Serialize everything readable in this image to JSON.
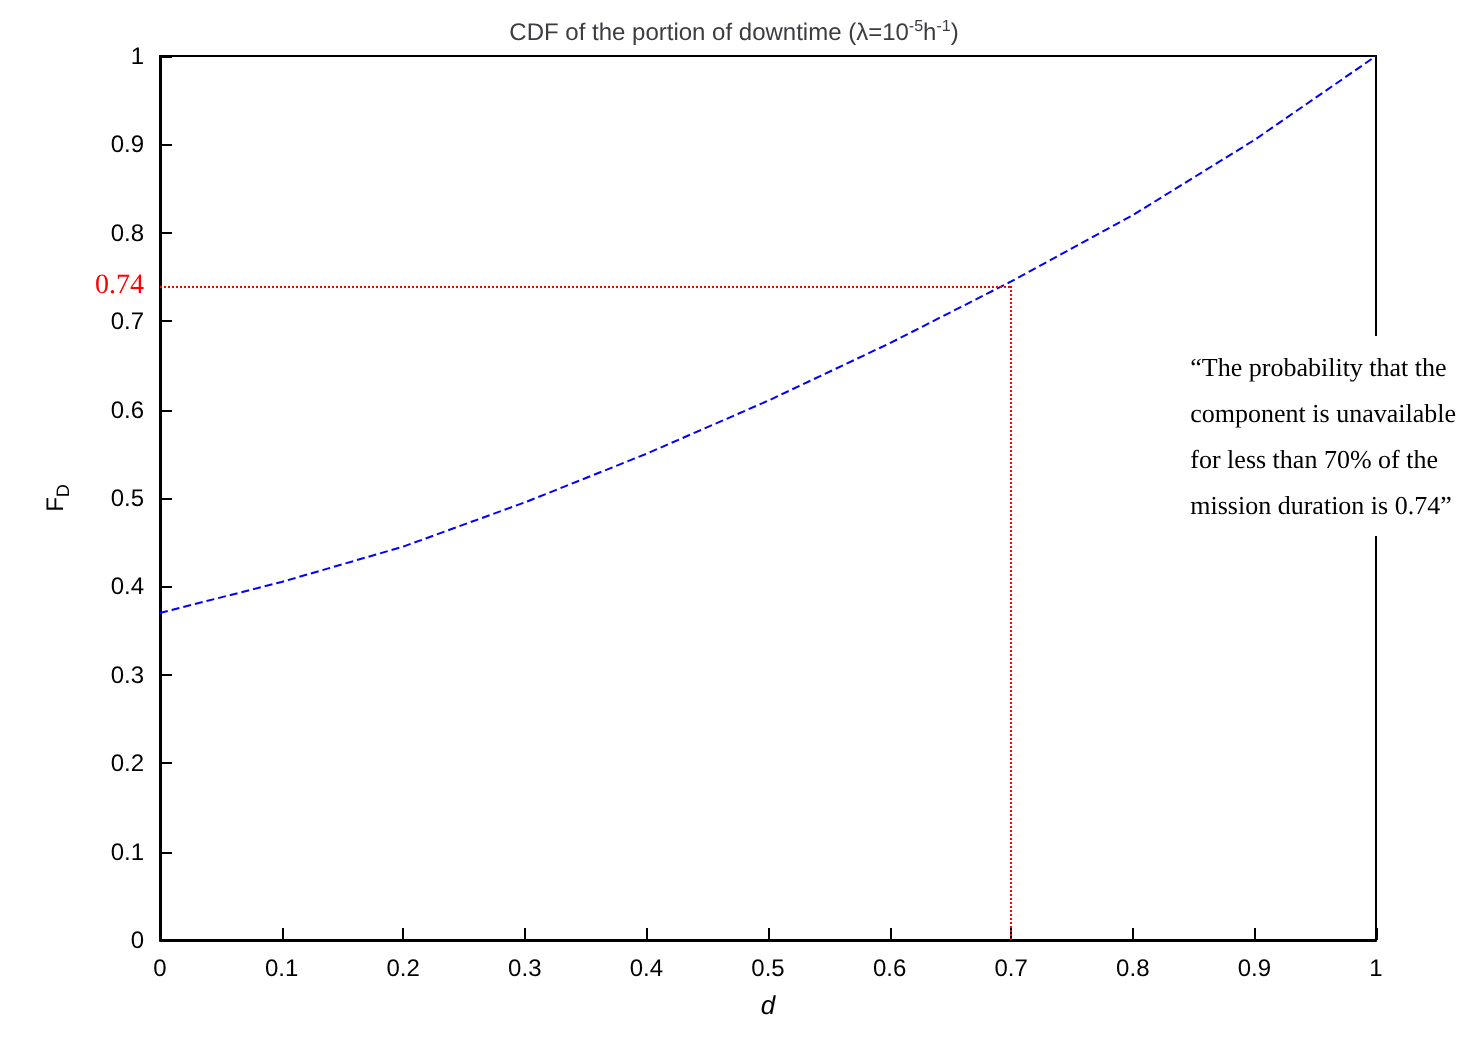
{
  "chart_data": {
    "type": "line",
    "title": "CDF of the portion of downtime (λ=10$^{-5}$h$^{-1}$)",
    "xlabel": "d",
    "ylabel": "F$_{D}$",
    "x": [
      0,
      0.1,
      0.2,
      0.3,
      0.4,
      0.5,
      0.6,
      0.7,
      0.8,
      0.9,
      1
    ],
    "series": [
      {
        "color": "#0000ff",
        "values": [
          0.37,
          0.405,
          0.445,
          0.495,
          0.55,
          0.61,
          0.675,
          0.745,
          0.82,
          0.905,
          1.0
        ]
      }
    ],
    "xlim": [
      0,
      1
    ],
    "xticks": [
      0,
      0.1,
      0.2,
      0.3,
      0.4,
      0.5,
      0.6,
      0.7,
      0.8,
      0.9,
      1
    ],
    "ylim": [
      0,
      1
    ],
    "yticks": [
      0,
      0.1,
      0.2,
      0.3,
      0.4,
      0.5,
      0.6,
      0.7,
      0.8,
      0.9,
      1
    ],
    "ref_lines": [
      {
        "axis": "y",
        "value": 0.74,
        "label": "0.74",
        "color": "#ff0000",
        "line_style": "dotted"
      },
      {
        "axis": "x",
        "value": 0.7,
        "color": "#ff0000",
        "line_style": "dotted"
      }
    ],
    "annotations": [
      "“The probability that the component is unavailable for less than 70% of the mission duration is 0.74”"
    ],
    "grid": false,
    "marker": "none",
    "line_style": "dashed"
  }
}
